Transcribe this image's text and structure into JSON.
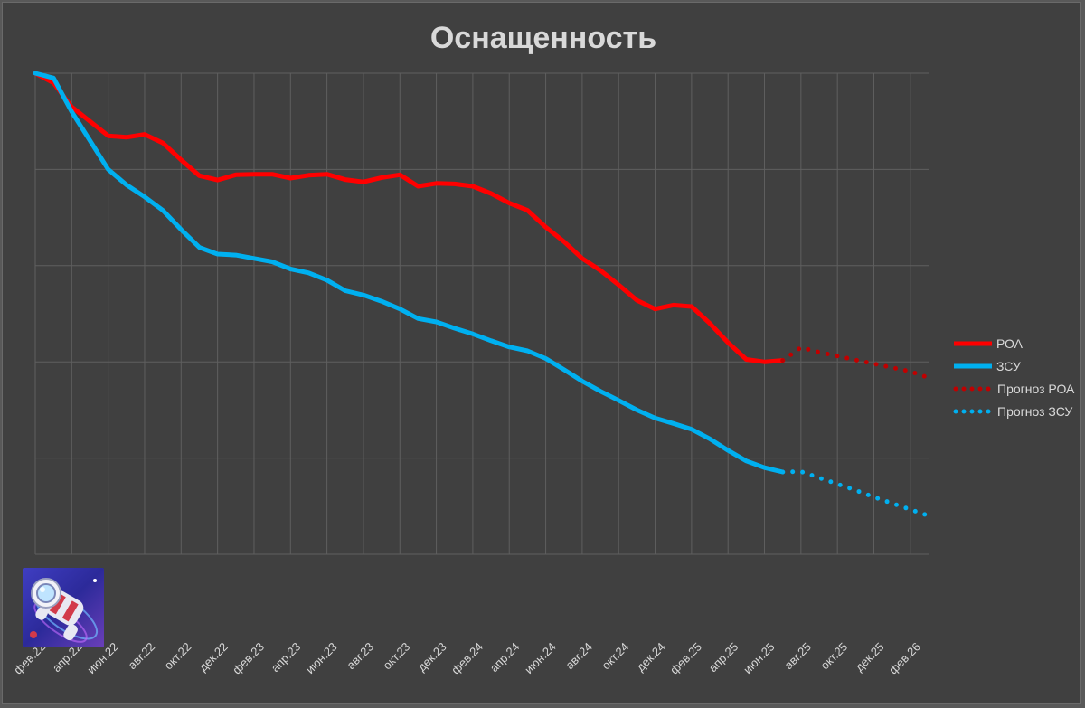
{
  "chart_data": {
    "type": "line",
    "title": "Оснащенность",
    "xlabel": "",
    "ylabel": "",
    "grid": true,
    "legend_position": "right",
    "x_tick_labels": [
      "фев.22",
      "апр.22",
      "июн.22",
      "авг.22",
      "окт.22",
      "дек.22",
      "фев.23",
      "апр.23",
      "июн.23",
      "авг.23",
      "окт.23",
      "дек.23",
      "фев.24",
      "апр.24",
      "июн.24",
      "авг.24",
      "окт.24",
      "дек.24",
      "фев.25",
      "апр.25",
      "июн.25",
      "авг.25",
      "окт.25",
      "дек.25",
      "фев.26"
    ],
    "x_start": "2022-02",
    "x_end": "2026-03",
    "y_axis_labels_shown": false,
    "ylim": [
      0,
      100
    ],
    "series": [
      {
        "name": "РОА",
        "color": "#ff0000",
        "style": "solid",
        "x": [
          "2022-02",
          "2022-03",
          "2022-04",
          "2022-05",
          "2022-06",
          "2022-07",
          "2022-08",
          "2022-09",
          "2022-10",
          "2022-11",
          "2022-12",
          "2023-01",
          "2023-02",
          "2023-03",
          "2023-04",
          "2023-05",
          "2023-06",
          "2023-07",
          "2023-08",
          "2023-09",
          "2023-10",
          "2023-11",
          "2023-12",
          "2024-01",
          "2024-02",
          "2024-03",
          "2024-04",
          "2024-05",
          "2024-06",
          "2024-07",
          "2024-08",
          "2024-09",
          "2024-10",
          "2024-11",
          "2024-12",
          "2025-01",
          "2025-02",
          "2025-03",
          "2025-04",
          "2025-05",
          "2025-06",
          "2025-07"
        ],
        "values": [
          100,
          98,
          93,
          90,
          87,
          86.7,
          87.3,
          85.5,
          82,
          78.7,
          77.8,
          78.9,
          79,
          79,
          78.2,
          78.8,
          79,
          77.9,
          77.4,
          78.3,
          78.9,
          76.5,
          77.1,
          77,
          76.5,
          75,
          73,
          71.5,
          68,
          65,
          61.5,
          59,
          56,
          52.8,
          51,
          51.8,
          51.5,
          48,
          44,
          40.5,
          40,
          40.3
        ]
      },
      {
        "name": "ЗСУ",
        "color": "#00b0f0",
        "style": "solid",
        "x": [
          "2022-02",
          "2022-03",
          "2022-04",
          "2022-05",
          "2022-06",
          "2022-07",
          "2022-08",
          "2022-09",
          "2022-10",
          "2022-11",
          "2022-12",
          "2023-01",
          "2023-02",
          "2023-03",
          "2023-04",
          "2023-05",
          "2023-06",
          "2023-07",
          "2023-08",
          "2023-09",
          "2023-10",
          "2023-11",
          "2023-12",
          "2024-01",
          "2024-02",
          "2024-03",
          "2024-04",
          "2024-05",
          "2024-06",
          "2024-07",
          "2024-08",
          "2024-09",
          "2024-10",
          "2024-11",
          "2024-12",
          "2025-01",
          "2025-02",
          "2025-03",
          "2025-04",
          "2025-05",
          "2025-06",
          "2025-07"
        ],
        "values": [
          100,
          99,
          92,
          86,
          80,
          76.8,
          74.3,
          71.5,
          67.5,
          63.8,
          62.4,
          62.2,
          61.5,
          60.8,
          59.3,
          58.5,
          57,
          54.8,
          53.9,
          52.6,
          51,
          49,
          48.3,
          47,
          45.8,
          44.4,
          43.1,
          42.3,
          40.7,
          38.4,
          36,
          33.9,
          32,
          30,
          28.3,
          27.2,
          26,
          24,
          21.6,
          19.4,
          18,
          17.1
        ]
      },
      {
        "name": "Прогноз РОА",
        "color": "#c00000",
        "style": "dotted",
        "x": [
          "2025-07",
          "2025-08",
          "2025-09",
          "2025-10",
          "2025-11",
          "2025-12",
          "2026-01",
          "2026-02",
          "2026-03"
        ],
        "values": [
          40.3,
          43,
          42,
          41.2,
          40.4,
          39.6,
          38.8,
          38,
          36.7
        ]
      },
      {
        "name": "Прогноз ЗСУ",
        "color": "#00b0f0",
        "style": "dotted",
        "x": [
          "2025-07",
          "2025-08",
          "2025-09",
          "2025-10",
          "2025-11",
          "2025-12",
          "2026-01",
          "2026-02",
          "2026-03"
        ],
        "values": [
          17.1,
          17.2,
          15.9,
          14.6,
          13.3,
          11.9,
          10.6,
          9.3,
          8
        ]
      }
    ]
  },
  "logo": {
    "icon": "astronaut-logo-icon"
  }
}
